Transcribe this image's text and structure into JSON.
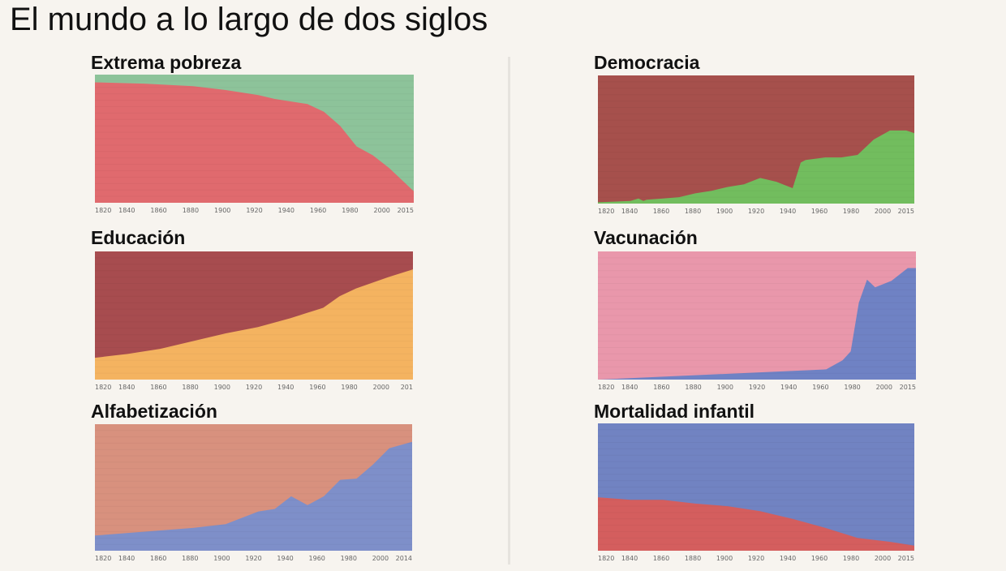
{
  "page": {
    "title": "El mundo a lo largo de dos siglos"
  },
  "chart_data": [
    {
      "id": "extrema-pobreza",
      "type": "area",
      "title": "Extrema pobreza",
      "x": [
        1820,
        1850,
        1880,
        1900,
        1910,
        1920,
        1930,
        1950,
        1960,
        1970,
        1980,
        1990,
        2000,
        2015
      ],
      "ylim": [
        0,
        100
      ],
      "xticks": [
        "1820",
        "1840",
        "1860",
        "1880",
        "1900",
        "1920",
        "1940",
        "1960",
        "1980",
        "2000",
        "2015"
      ],
      "series": [
        {
          "name": "bottom",
          "color": "#e06a6e",
          "values": [
            94,
            93,
            91,
            88,
            86,
            84,
            81,
            77,
            71,
            60,
            44,
            37,
            27,
            9
          ]
        },
        {
          "name": "top",
          "color": "#8dc39a",
          "values": [
            6,
            7,
            9,
            12,
            14,
            16,
            19,
            23,
            29,
            40,
            56,
            63,
            73,
            91
          ]
        }
      ]
    },
    {
      "id": "educacion",
      "type": "area",
      "title": "Educación",
      "x": [
        1820,
        1840,
        1860,
        1880,
        1900,
        1920,
        1940,
        1960,
        1970,
        1980,
        2000,
        2015
      ],
      "ylim": [
        0,
        100
      ],
      "xticks": [
        "1820",
        "1840",
        "1860",
        "1880",
        "1900",
        "1920",
        "1940",
        "1960",
        "1980",
        "2000",
        "201"
      ],
      "series": [
        {
          "name": "bottom",
          "color": "#f4b360",
          "values": [
            17,
            20,
            24,
            30,
            36,
            41,
            48,
            56,
            65,
            71,
            80,
            86
          ]
        },
        {
          "name": "top",
          "color": "#a74c4f",
          "values": [
            83,
            80,
            76,
            70,
            64,
            59,
            52,
            44,
            35,
            29,
            20,
            14
          ]
        }
      ]
    },
    {
      "id": "alfabetizacion",
      "type": "area",
      "title": "Alfabetización",
      "x": [
        1820,
        1880,
        1900,
        1910,
        1920,
        1930,
        1940,
        1950,
        1960,
        1970,
        1980,
        1990,
        2000,
        2014
      ],
      "ylim": [
        0,
        100
      ],
      "xticks": [
        "1820",
        "1840",
        "1860",
        "1880",
        "1900",
        "1920",
        "1940",
        "1960",
        "1980",
        "2000",
        "2014"
      ],
      "series": [
        {
          "name": "bottom",
          "color": "#7e8fc9",
          "values": [
            12,
            18,
            21,
            26,
            31,
            33,
            43,
            36,
            43,
            56,
            57,
            68,
            81,
            86
          ]
        },
        {
          "name": "top",
          "color": "#d8917e",
          "values": [
            88,
            82,
            79,
            74,
            69,
            67,
            57,
            64,
            57,
            44,
            43,
            32,
            19,
            14
          ]
        }
      ]
    },
    {
      "id": "democracia",
      "type": "area",
      "title": "Democracia",
      "x": [
        1820,
        1840,
        1845,
        1848,
        1850,
        1860,
        1870,
        1880,
        1890,
        1900,
        1910,
        1920,
        1930,
        1940,
        1945,
        1948,
        1960,
        1970,
        1980,
        1990,
        2000,
        2010,
        2015
      ],
      "ylim": [
        0,
        100
      ],
      "xticks": [
        "1820",
        "1840",
        "1860",
        "1880",
        "1900",
        "1920",
        "1940",
        "1960",
        "1980",
        "2000",
        "2015"
      ],
      "series": [
        {
          "name": "bottom",
          "color": "#72bd5e",
          "values": [
            1,
            2,
            4,
            2,
            3,
            4,
            5,
            8,
            10,
            13,
            15,
            20,
            17,
            12,
            32,
            34,
            36,
            36,
            38,
            50,
            57,
            57,
            55
          ]
        },
        {
          "name": "top",
          "color": "#a6504c",
          "values": [
            99,
            98,
            96,
            98,
            97,
            96,
            95,
            92,
            90,
            87,
            85,
            80,
            83,
            88,
            68,
            66,
            64,
            64,
            62,
            50,
            43,
            43,
            45
          ]
        }
      ]
    },
    {
      "id": "vacunacion",
      "type": "area",
      "title": "Vacunación",
      "x": [
        1820,
        1960,
        1970,
        1975,
        1980,
        1985,
        1990,
        2000,
        2010,
        2015
      ],
      "ylim": [
        0,
        100
      ],
      "xticks": [
        "1820",
        "1840",
        "1860",
        "1880",
        "1900",
        "1920",
        "1940",
        "1960",
        "1980",
        "2000",
        "2015"
      ],
      "series": [
        {
          "name": "bottom",
          "color": "#6f82c4",
          "values": [
            0,
            8,
            15,
            22,
            60,
            78,
            72,
            77,
            87,
            87
          ]
        },
        {
          "name": "top",
          "color": "#e997ab",
          "values": [
            100,
            92,
            85,
            78,
            40,
            22,
            28,
            23,
            13,
            13
          ]
        }
      ]
    },
    {
      "id": "mortalidad-infantil",
      "type": "area",
      "title": "Mortalidad infantil",
      "x": [
        1820,
        1840,
        1860,
        1880,
        1900,
        1920,
        1940,
        1960,
        1980,
        2000,
        2015
      ],
      "ylim": [
        0,
        100
      ],
      "xticks": [
        "1820",
        "1840",
        "1860",
        "1880",
        "1900",
        "1920",
        "1940",
        "1960",
        "1980",
        "2000",
        "2015"
      ],
      "series": [
        {
          "name": "bottom",
          "color": "#d45e5e",
          "values": [
            42,
            40,
            40,
            37,
            35,
            31,
            25,
            18,
            10,
            7,
            4
          ]
        },
        {
          "name": "top",
          "color": "#7183c2",
          "values": [
            58,
            60,
            60,
            63,
            65,
            69,
            75,
            82,
            90,
            93,
            96
          ]
        }
      ]
    }
  ]
}
